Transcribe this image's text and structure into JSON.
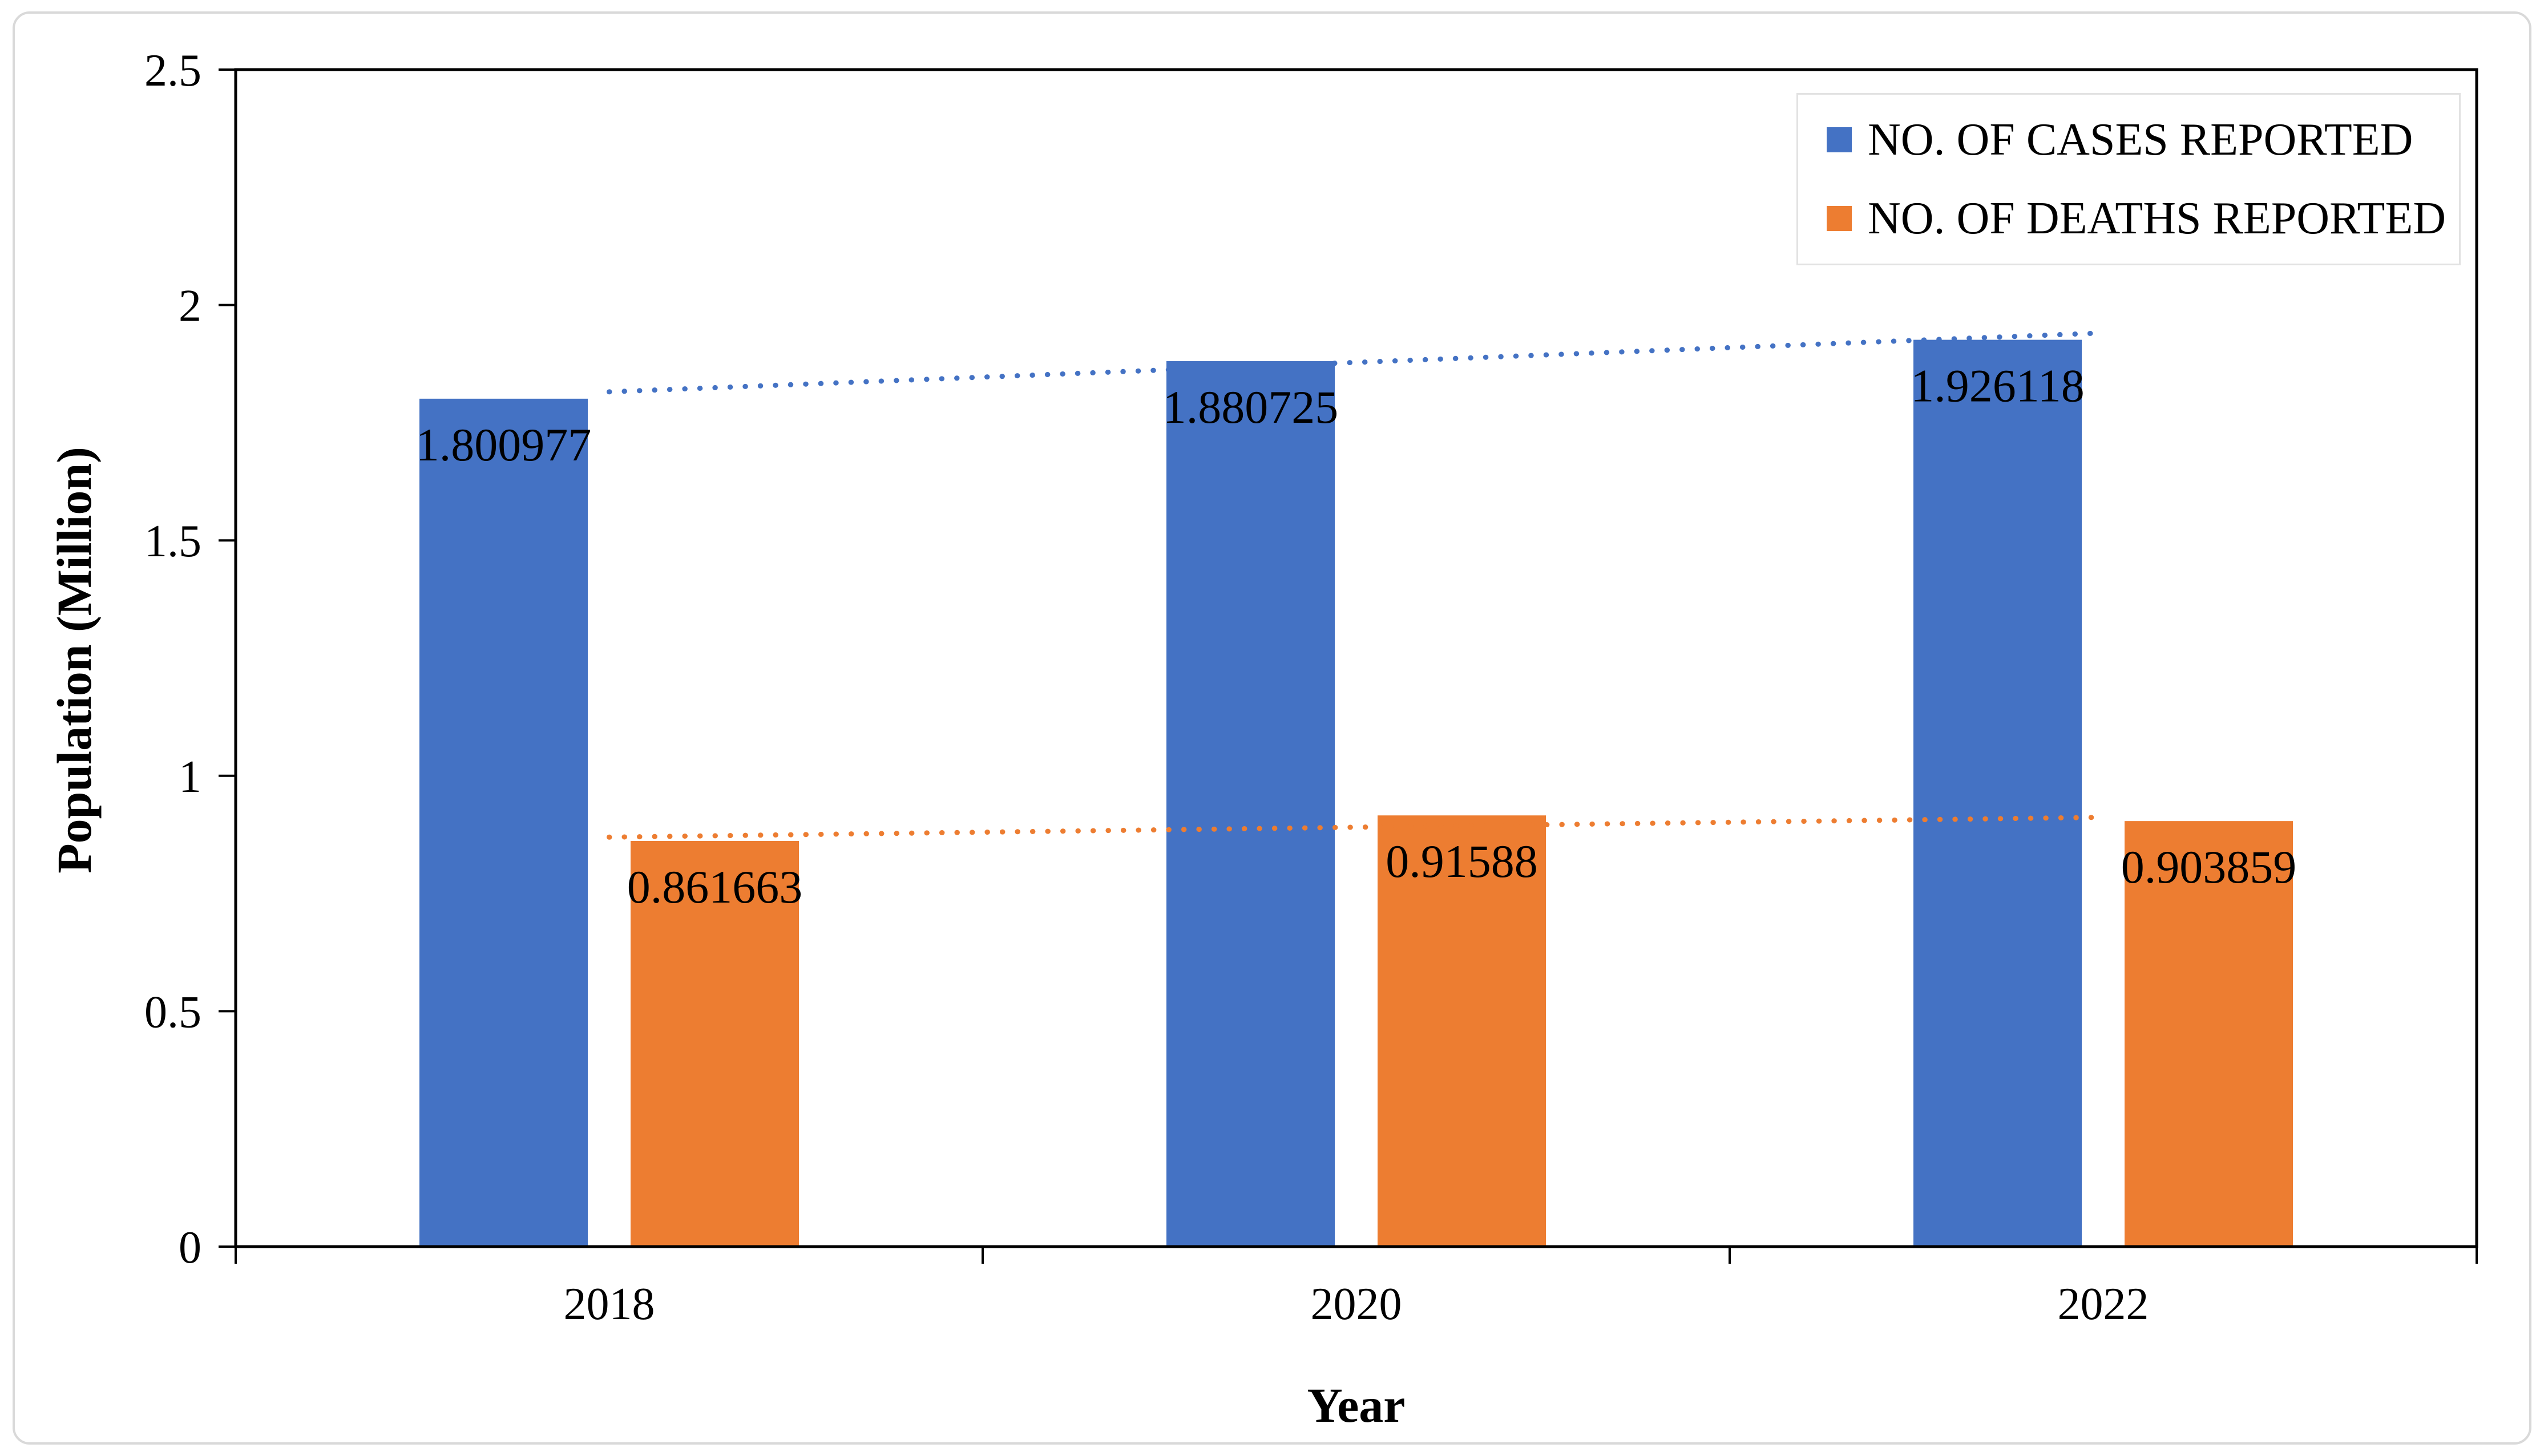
{
  "figure": {
    "background": "#ffffff",
    "border_color": "#d9d9d9"
  },
  "axes": {
    "y_title": "Population (Million)",
    "x_title": "Year",
    "y_ticks": [
      {
        "label": "0",
        "value": 0
      },
      {
        "label": "0.5",
        "value": 0.5
      },
      {
        "label": "1",
        "value": 1
      },
      {
        "label": "1.5",
        "value": 1.5
      },
      {
        "label": "2",
        "value": 2
      },
      {
        "label": "2.5",
        "value": 2.5
      }
    ]
  },
  "legend": {
    "items": [
      {
        "label": "NO. OF CASES REPORTED",
        "color": "#4472C4"
      },
      {
        "label": "NO. OF DEATHS REPORTED",
        "color": "#ED7D31"
      }
    ]
  },
  "chart_data": {
    "type": "bar",
    "title": "",
    "categories": [
      "2018",
      "2020",
      "2022"
    ],
    "series": [
      {
        "name": "NO. OF CASES REPORTED",
        "color": "#4472C4",
        "values": [
          1.800977,
          1.880725,
          1.926118
        ],
        "labels": [
          "1.800977",
          "1.880725",
          "1.926118"
        ],
        "trendline": {
          "type": "linear",
          "style": "dotted",
          "color": "#4472C4"
        }
      },
      {
        "name": "NO. OF DEATHS REPORTED",
        "color": "#ED7D31",
        "values": [
          0.861663,
          0.91588,
          0.903859
        ],
        "labels": [
          "0.861663",
          "0.91588",
          "0.903859"
        ],
        "trendline": {
          "type": "linear",
          "style": "dotted",
          "color": "#ED7D31"
        }
      }
    ],
    "xlabel": "Year",
    "ylabel": "Population (Million)",
    "ylim": [
      0,
      2.5
    ],
    "grid": false,
    "legend_position": "top-right",
    "data_labels": "inside-top",
    "label_color": "#000000",
    "axis_color": "#000000"
  }
}
